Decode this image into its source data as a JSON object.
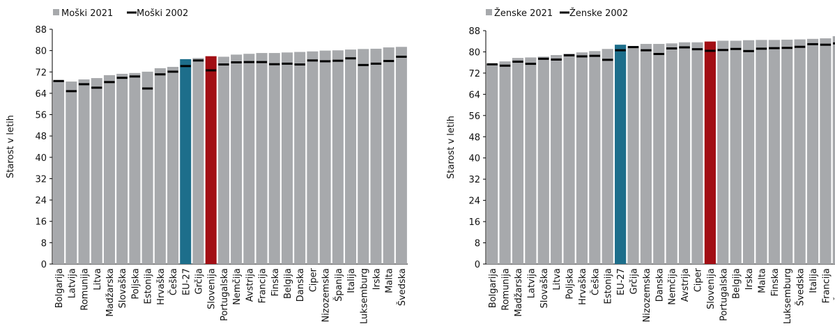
{
  "chart_data": [
    {
      "type": "bar",
      "ylabel": "Starost v letih",
      "ylim": [
        0,
        88
      ],
      "yticks": [
        0,
        8,
        16,
        24,
        32,
        40,
        48,
        56,
        64,
        72,
        80,
        88
      ],
      "categories": [
        "Bolgarija",
        "Latvija",
        "Romunija",
        "Litva",
        "Madžarska",
        "Slovaška",
        "Poljska",
        "Estonija",
        "Hrvaška",
        "Češka",
        "EU-27",
        "Grčija",
        "Slovenija",
        "Portugalska",
        "Nemčija",
        "Avstrija",
        "Francija",
        "Finska",
        "Belgija",
        "Danska",
        "Ciper",
        "Nizozemska",
        "Španija",
        "Italija",
        "Luksemburg",
        "Irska",
        "Malta",
        "Švedska"
      ],
      "series": [
        {
          "name": "Moški 2021",
          "style": "bar",
          "color": "#a7a9ac",
          "colors": [
            "#a7a9ac",
            "#a7a9ac",
            "#a7a9ac",
            "#a7a9ac",
            "#a7a9ac",
            "#a7a9ac",
            "#a7a9ac",
            "#a7a9ac",
            "#a7a9ac",
            "#a7a9ac",
            "#1d6e8b",
            "#a7a9ac",
            "#a20e14",
            "#a7a9ac",
            "#a7a9ac",
            "#a7a9ac",
            "#a7a9ac",
            "#a7a9ac",
            "#a7a9ac",
            "#a7a9ac",
            "#a7a9ac",
            "#a7a9ac",
            "#a7a9ac",
            "#a7a9ac",
            "#a7a9ac",
            "#a7a9ac",
            "#a7a9ac",
            "#a7a9ac"
          ],
          "values": [
            68.7,
            68.4,
            69.2,
            69.7,
            70.8,
            71.3,
            71.6,
            72.1,
            73.4,
            73.9,
            76.8,
            77.2,
            77.9,
            77.7,
            78.5,
            78.8,
            79.1,
            79.1,
            79.3,
            79.5,
            79.7,
            80.0,
            80.1,
            80.4,
            80.6,
            80.7,
            81.2,
            81.4
          ]
        },
        {
          "name": "Moški 2002",
          "style": "dash",
          "color": "#000000",
          "values": [
            68.6,
            64.8,
            67.4,
            66.1,
            68.2,
            69.8,
            70.3,
            65.8,
            71.1,
            72.1,
            74.2,
            76.3,
            72.6,
            74.8,
            75.6,
            75.7,
            75.7,
            74.9,
            75.1,
            74.8,
            76.3,
            76.0,
            76.2,
            77.1,
            74.6,
            75.1,
            76.1,
            77.7
          ]
        }
      ]
    },
    {
      "type": "bar",
      "ylabel": "Starost v letih",
      "ylim": [
        0,
        88
      ],
      "yticks": [
        0,
        8,
        16,
        24,
        32,
        40,
        48,
        56,
        64,
        72,
        80,
        88
      ],
      "categories": [
        "Bolgarija",
        "Romunija",
        "Madžarska",
        "Latvija",
        "Slovaška",
        "Litva",
        "Poljska",
        "Hrvaška",
        "Češka",
        "Estonija",
        "EU-27",
        "Grčija",
        "Nizozemska",
        "Danska",
        "Nemčija",
        "Avstrija",
        "Ciper",
        "Slovenija",
        "Portugalska",
        "Belgija",
        "Irska",
        "Malta",
        "Finska",
        "Luksemburg",
        "Švedska",
        "Italija",
        "Francija",
        "Španija"
      ],
      "series": [
        {
          "name": "Ženske 2021",
          "style": "bar",
          "color": "#a7a9ac",
          "colors": [
            "#a7a9ac",
            "#a7a9ac",
            "#a7a9ac",
            "#a7a9ac",
            "#a7a9ac",
            "#a7a9ac",
            "#a7a9ac",
            "#a7a9ac",
            "#a7a9ac",
            "#a7a9ac",
            "#1d6e8b",
            "#a7a9ac",
            "#a7a9ac",
            "#a7a9ac",
            "#a7a9ac",
            "#a7a9ac",
            "#a7a9ac",
            "#a20e14",
            "#a7a9ac",
            "#a7a9ac",
            "#a7a9ac",
            "#a7a9ac",
            "#a7a9ac",
            "#a7a9ac",
            "#a7a9ac",
            "#a7a9ac",
            "#a7a9ac",
            "#a7a9ac"
          ],
          "values": [
            75.3,
            76.4,
            77.7,
            77.9,
            78.2,
            78.8,
            79.3,
            79.8,
            80.3,
            81.1,
            82.7,
            82.2,
            83.0,
            83.0,
            83.2,
            83.6,
            83.6,
            83.9,
            84.2,
            84.2,
            84.4,
            84.5,
            84.5,
            84.6,
            84.7,
            84.9,
            85.1,
            85.9
          ]
        },
        {
          "name": "Ženske 2002",
          "style": "dash",
          "color": "#000000",
          "values": [
            75.3,
            74.8,
            76.3,
            75.5,
            77.4,
            77.1,
            78.7,
            78.3,
            78.5,
            77.0,
            80.6,
            81.8,
            80.6,
            79.2,
            81.3,
            81.7,
            81.0,
            80.4,
            80.7,
            81.1,
            80.3,
            81.2,
            81.4,
            81.5,
            81.9,
            82.9,
            82.7,
            83.2
          ]
        }
      ]
    }
  ]
}
